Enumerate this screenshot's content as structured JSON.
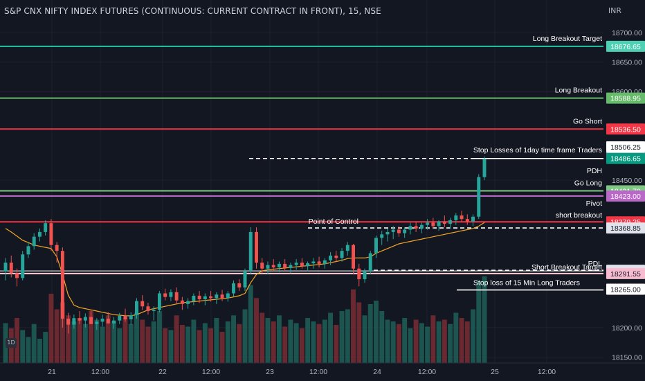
{
  "header": {
    "symbol_title": "S&P CNX NIFTY INDEX FUTURES (CONTINUOUS: CURRENT CONTRACT IN FRONT), 15, NSE",
    "currency": "INR"
  },
  "interval_badge": "1D",
  "chart_data": {
    "type": "candlestick",
    "title": "S&P CNX NIFTY INDEX FUTURES (CONTINUOUS: CURRENT CONTRACT IN FRONT), 15, NSE",
    "ylim": [
      18140,
      18720
    ],
    "y_ticks": [
      "18700.00",
      "18650.00",
      "18600.00",
      "18450.00",
      "18200.00",
      "18150.00"
    ],
    "x_ticks": [
      "21",
      "12:00",
      "22",
      "12:00",
      "23",
      "12:00",
      "24",
      "12:00",
      "25",
      "12:00"
    ],
    "colors": {
      "up": "#26a69a",
      "down": "#ef5350",
      "vwap": "#f5a623",
      "background": "#131722"
    },
    "levels": [
      {
        "label": "Long Breakout Target",
        "value": 18676.65,
        "price_text": "18676.65",
        "color": "#26c6a6",
        "style": "solid",
        "badge": "#4dd0b4"
      },
      {
        "label": "Long Breakout",
        "value": 18588.95,
        "price_text": "18588.95",
        "color": "#66bb6a",
        "style": "solid",
        "badge": "#66bb6a"
      },
      {
        "label": "Go Short",
        "value": 18536.5,
        "price_text": "18536.50",
        "color": "#f23645",
        "style": "solid",
        "badge": "#f23645"
      },
      {
        "label": "",
        "value": 18506.25,
        "price_text": "18506.25",
        "color": "#ffffff",
        "style": "none",
        "badge": "#ffffff"
      },
      {
        "label": "Stop Losses of  1day time frame Traders",
        "value": 18487.75,
        "price_text": "18487.75",
        "color": "#ffffff",
        "style": "short",
        "badge": "#e0e3eb"
      },
      {
        "label": "",
        "value": 18486.65,
        "price_text": "18486.65",
        "color": "#ffffff",
        "style": "dashed",
        "badge": "#089981"
      },
      {
        "label": "PDH",
        "value": 18476.0,
        "price_text": "",
        "color": "#ffffff",
        "style": "none",
        "badge": ""
      },
      {
        "label": "Go Long",
        "value": 18431.7,
        "price_text": "18431.70",
        "color": "#81c784",
        "style": "solid",
        "badge": "#81c784"
      },
      {
        "label": "Pivot",
        "value": 18423.0,
        "price_text": "18423.00",
        "color": "#ba68c8",
        "style": "solid",
        "badge": "#ba68c8"
      },
      {
        "label": "short breakout",
        "value": 18379.25,
        "price_text": "18379.25",
        "color": "#f23645",
        "style": "solid",
        "badge": "#f23645"
      },
      {
        "label": "Point of Control",
        "value": 18368.85,
        "price_text": "18368.85",
        "color": "#ffffff",
        "style": "dashed",
        "badge": "#e0e3eb"
      },
      {
        "label": "PDL",
        "value": 18297.15,
        "price_text": "18297.15",
        "color": "#ffffff",
        "style": "dashed",
        "badge": "#e0e3eb"
      },
      {
        "label": "Short  Breakout Target",
        "value": 18291.55,
        "price_text": "18291.55",
        "color": "#ffcdd2",
        "style": "solid",
        "badge": "#f8bbd0"
      },
      {
        "label": "Stop loss of 15 Min Long Traders",
        "value": 18265.0,
        "price_text": "18265.00",
        "color": "#ffffff",
        "style": "short",
        "badge": "#ffffff"
      }
    ],
    "candles": [
      [
        18295,
        18318,
        18280,
        18310
      ],
      [
        18310,
        18322,
        18285,
        18292
      ],
      [
        18292,
        18300,
        18270,
        18284
      ],
      [
        18284,
        18330,
        18280,
        18324
      ],
      [
        18324,
        18345,
        18318,
        18338
      ],
      [
        18338,
        18360,
        18332,
        18354
      ],
      [
        18354,
        18368,
        18346,
        18362
      ],
      [
        18362,
        18382,
        18356,
        18377
      ],
      [
        18377,
        18384,
        18330,
        18340
      ],
      [
        18340,
        18345,
        18310,
        18330
      ],
      [
        18330,
        18336,
        18200,
        18215
      ],
      [
        18215,
        18225,
        18190,
        18205
      ],
      [
        18205,
        18222,
        18198,
        18216
      ],
      [
        18216,
        18228,
        18206,
        18212
      ],
      [
        18212,
        18224,
        18200,
        18218
      ],
      [
        18218,
        18230,
        18210,
        18206
      ],
      [
        18206,
        18216,
        18196,
        18210
      ],
      [
        18210,
        18222,
        18202,
        18215
      ],
      [
        18215,
        18226,
        18208,
        18207
      ],
      [
        18207,
        18218,
        18198,
        18212
      ],
      [
        18212,
        18225,
        18206,
        18220
      ],
      [
        18220,
        18232,
        18210,
        18214
      ],
      [
        18214,
        18226,
        18205,
        18221
      ],
      [
        18221,
        18250,
        18215,
        18245
      ],
      [
        18245,
        18255,
        18230,
        18236
      ],
      [
        18236,
        18242,
        18222,
        18228
      ],
      [
        18228,
        18236,
        18212,
        18230
      ],
      [
        18230,
        18262,
        18226,
        18258
      ],
      [
        18258,
        18266,
        18246,
        18252
      ],
      [
        18252,
        18265,
        18245,
        18260
      ],
      [
        18260,
        18268,
        18240,
        18246
      ],
      [
        18246,
        18252,
        18230,
        18240
      ],
      [
        18240,
        18250,
        18232,
        18245
      ],
      [
        18245,
        18258,
        18238,
        18254
      ],
      [
        18254,
        18262,
        18242,
        18248
      ],
      [
        18248,
        18258,
        18238,
        18253
      ],
      [
        18253,
        18262,
        18244,
        18250
      ],
      [
        18250,
        18260,
        18240,
        18256
      ],
      [
        18256,
        18264,
        18245,
        18250
      ],
      [
        18250,
        18262,
        18244,
        18258
      ],
      [
        18258,
        18280,
        18252,
        18275
      ],
      [
        18275,
        18282,
        18262,
        18268
      ],
      [
        18268,
        18300,
        18262,
        18296
      ],
      [
        18296,
        18370,
        18290,
        18362
      ],
      [
        18362,
        18370,
        18300,
        18310
      ],
      [
        18310,
        18318,
        18292,
        18300
      ],
      [
        18300,
        18312,
        18290,
        18306
      ],
      [
        18306,
        18316,
        18296,
        18302
      ],
      [
        18302,
        18312,
        18294,
        18308
      ],
      [
        18308,
        18316,
        18296,
        18301
      ],
      [
        18301,
        18310,
        18292,
        18306
      ],
      [
        18306,
        18316,
        18298,
        18310
      ],
      [
        18310,
        18318,
        18300,
        18304
      ],
      [
        18304,
        18312,
        18295,
        18309
      ],
      [
        18309,
        18318,
        18300,
        18312
      ],
      [
        18312,
        18320,
        18302,
        18308
      ],
      [
        18308,
        18318,
        18300,
        18314
      ],
      [
        18314,
        18328,
        18306,
        18322
      ],
      [
        18322,
        18330,
        18312,
        18318
      ],
      [
        18318,
        18335,
        18312,
        18330
      ],
      [
        18330,
        18345,
        18322,
        18340
      ],
      [
        18340,
        18342,
        18290,
        18300
      ],
      [
        18300,
        18308,
        18270,
        18282
      ],
      [
        18282,
        18300,
        18276,
        18296
      ],
      [
        18296,
        18330,
        18290,
        18326
      ],
      [
        18326,
        18356,
        18318,
        18352
      ],
      [
        18352,
        18364,
        18340,
        18358
      ],
      [
        18358,
        18368,
        18346,
        18362
      ],
      [
        18362,
        18372,
        18350,
        18366
      ],
      [
        18366,
        18372,
        18354,
        18360
      ],
      [
        18360,
        18370,
        18352,
        18366
      ],
      [
        18366,
        18378,
        18358,
        18372
      ],
      [
        18372,
        18380,
        18362,
        18368
      ],
      [
        18368,
        18378,
        18360,
        18374
      ],
      [
        18374,
        18384,
        18366,
        18378
      ],
      [
        18378,
        18386,
        18368,
        18372
      ],
      [
        18372,
        18382,
        18364,
        18380
      ],
      [
        18380,
        18390,
        18370,
        18376
      ],
      [
        18376,
        18386,
        18368,
        18382
      ],
      [
        18382,
        18394,
        18374,
        18390
      ],
      [
        18390,
        18398,
        18380,
        18384
      ],
      [
        18384,
        18392,
        18374,
        18380
      ],
      [
        18380,
        18392,
        18372,
        18388
      ],
      [
        18388,
        18460,
        18384,
        18455
      ],
      [
        18455,
        18490,
        18450,
        18486
      ]
    ],
    "volumes": [
      46,
      40,
      52,
      38,
      30,
      45,
      28,
      36,
      80,
      62,
      70,
      55,
      48,
      52,
      45,
      60,
      50,
      42,
      55,
      48,
      40,
      52,
      45,
      58,
      50,
      42,
      48,
      60,
      40,
      38,
      55,
      44,
      42,
      50,
      38,
      46,
      40,
      52,
      36,
      48,
      55,
      45,
      62,
      90,
      75,
      58,
      52,
      48,
      55,
      42,
      50,
      46,
      40,
      52,
      48,
      45,
      50,
      58,
      44,
      60,
      62,
      85,
      70,
      55,
      68,
      72,
      60,
      50,
      48,
      45,
      52,
      40,
      50,
      46,
      42,
      55,
      48,
      50,
      45,
      58,
      52,
      48,
      62,
      95,
      100
    ],
    "vwap": [
      18368,
      18362,
      18355,
      18348,
      18344,
      18340,
      18338,
      18336,
      18334,
      18320,
      18290,
      18255,
      18238,
      18234,
      18232,
      18230,
      18228,
      18226,
      18224,
      18222,
      18221,
      18220,
      18220,
      18222,
      18226,
      18230,
      18232,
      18234,
      18236,
      18238,
      18240,
      18242,
      18243,
      18244,
      18245,
      18246,
      18247,
      18248,
      18249,
      18250,
      18252,
      18254,
      18258,
      18276,
      18290,
      18296,
      18298,
      18299,
      18300,
      18301,
      18302,
      18303,
      18304,
      18305,
      18306,
      18307,
      18308,
      18310,
      18312,
      18314,
      18317,
      18318,
      18318,
      18318,
      18320,
      18326,
      18330,
      18334,
      18338,
      18342,
      18344,
      18346,
      18348,
      18350,
      18352,
      18354,
      18356,
      18358,
      18360,
      18362,
      18364,
      18366,
      18368,
      18372,
      18378
    ]
  }
}
